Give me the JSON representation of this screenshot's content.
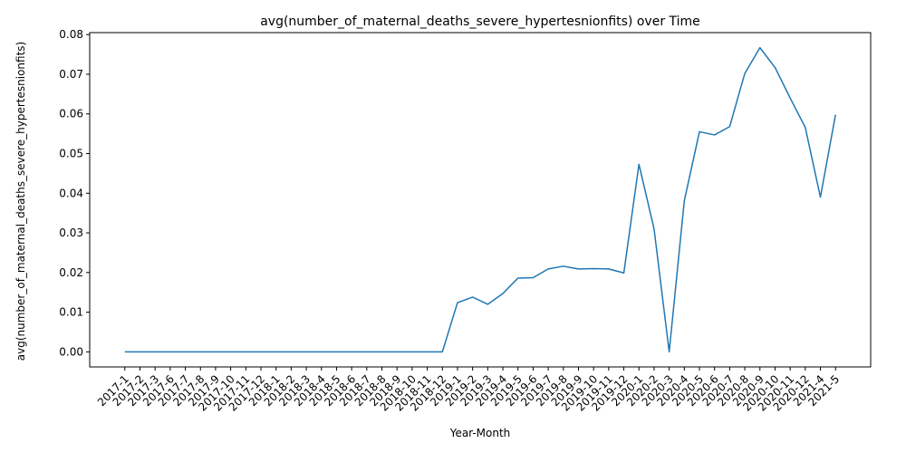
{
  "chart_data": {
    "type": "line",
    "title": "avg(number_of_maternal_deaths_severe_hypertesnionfits) over Time",
    "xlabel": "Year-Month",
    "ylabel": "avg(number_of_maternal_deaths_severe_hypertesnionfits)",
    "ylim": [
      -0.0038,
      0.0805
    ],
    "yticks": [
      "0.00",
      "0.01",
      "0.02",
      "0.03",
      "0.04",
      "0.05",
      "0.06",
      "0.07",
      "0.08"
    ],
    "line_color": "#1f77b4",
    "grid": false,
    "legend": "none",
    "x": [
      "2017-1",
      "2017-2",
      "2017-3",
      "2017-6",
      "2017-7",
      "2017-8",
      "2017-9",
      "2017-10",
      "2017-11",
      "2017-12",
      "2018-1",
      "2018-2",
      "2018-3",
      "2018-4",
      "2018-5",
      "2018-6",
      "2018-7",
      "2018-8",
      "2018-9",
      "2018-10",
      "2018-11",
      "2018-12",
      "2019-1",
      "2019-2",
      "2019-3",
      "2019-4",
      "2019-5",
      "2019-6",
      "2019-7",
      "2019-8",
      "2019-9",
      "2019-10",
      "2019-11",
      "2019-12",
      "2020-1",
      "2020-2",
      "2020-3",
      "2020-4",
      "2020-5",
      "2020-6",
      "2020-7",
      "2020-8",
      "2020-9",
      "2020-10",
      "2020-11",
      "2020-12",
      "2021-4",
      "2021-5"
    ],
    "series": [
      {
        "values": [
          0,
          0,
          0,
          0,
          0,
          0,
          0,
          0,
          0,
          0,
          0,
          0,
          0,
          0,
          0,
          0,
          0,
          0,
          0,
          0,
          0,
          0,
          0.0124,
          0.0138,
          0.012,
          0.0147,
          0.0186,
          0.0187,
          0.0209,
          0.0216,
          0.0209,
          0.021,
          0.0209,
          0.0199,
          0.0473,
          0.031,
          0.0,
          0.0381,
          0.0555,
          0.0547,
          0.0568,
          0.0702,
          0.0767,
          0.0717,
          0.064,
          0.0566,
          0.039,
          0.0598
        ]
      }
    ]
  }
}
